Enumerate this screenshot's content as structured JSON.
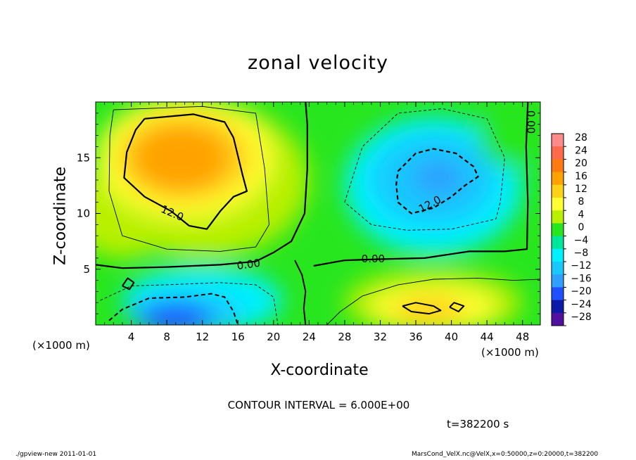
{
  "chart_data": {
    "type": "heatmap",
    "title": "zonal velocity",
    "xlabel": "X-coordinate",
    "ylabel": "Z-coordinate",
    "x_unit": "(×1000 m)",
    "y_unit": "(×1000 m)",
    "xlim": [
      0,
      50
    ],
    "ylim": [
      0,
      20
    ],
    "x_ticks": [
      4,
      8,
      12,
      16,
      20,
      24,
      28,
      32,
      36,
      40,
      44,
      48
    ],
    "y_ticks": [
      5,
      10,
      15
    ],
    "colorbar": {
      "levels": [
        28,
        24,
        20,
        16,
        12,
        8,
        4,
        0,
        -4,
        -8,
        -12,
        -16,
        -20,
        -24,
        -28
      ],
      "labels": [
        "28",
        "24",
        "20",
        "16",
        "12",
        "8",
        "4",
        "0",
        "−4",
        "−8",
        "−12",
        "−16",
        "−20",
        "−24",
        "−28"
      ]
    },
    "field_centers": [
      {
        "x": 10,
        "z": 15,
        "value": 18
      },
      {
        "x": 38,
        "z": 13,
        "value": -13
      },
      {
        "x": 9,
        "z": 1,
        "value": -17
      },
      {
        "x": 38,
        "z": 1.5,
        "value": 12
      }
    ],
    "contour_labels": [
      {
        "x": 8.6,
        "z": 10.0,
        "text": "12.0",
        "angle": 24
      },
      {
        "x": 37.6,
        "z": 10.8,
        "text": "12.0",
        "angle": -28
      },
      {
        "x": 17.2,
        "z": 5.4,
        "text": "0.00",
        "angle": -8
      },
      {
        "x": 31.2,
        "z": 5.9,
        "text": "0.00",
        "angle": 0
      },
      {
        "x": 48.9,
        "z": 18.2,
        "text": "0.00",
        "angle": 90
      }
    ],
    "contour_interval": "CONTOUR INTERVAL = 6.000E+00",
    "time": "t=382200 s"
  },
  "footer": {
    "left": "./gpview-new   2011-01-01",
    "right": "MarsCond_VelX.nc@VelX,x=0:50000,z=0:20000,t=382200"
  }
}
